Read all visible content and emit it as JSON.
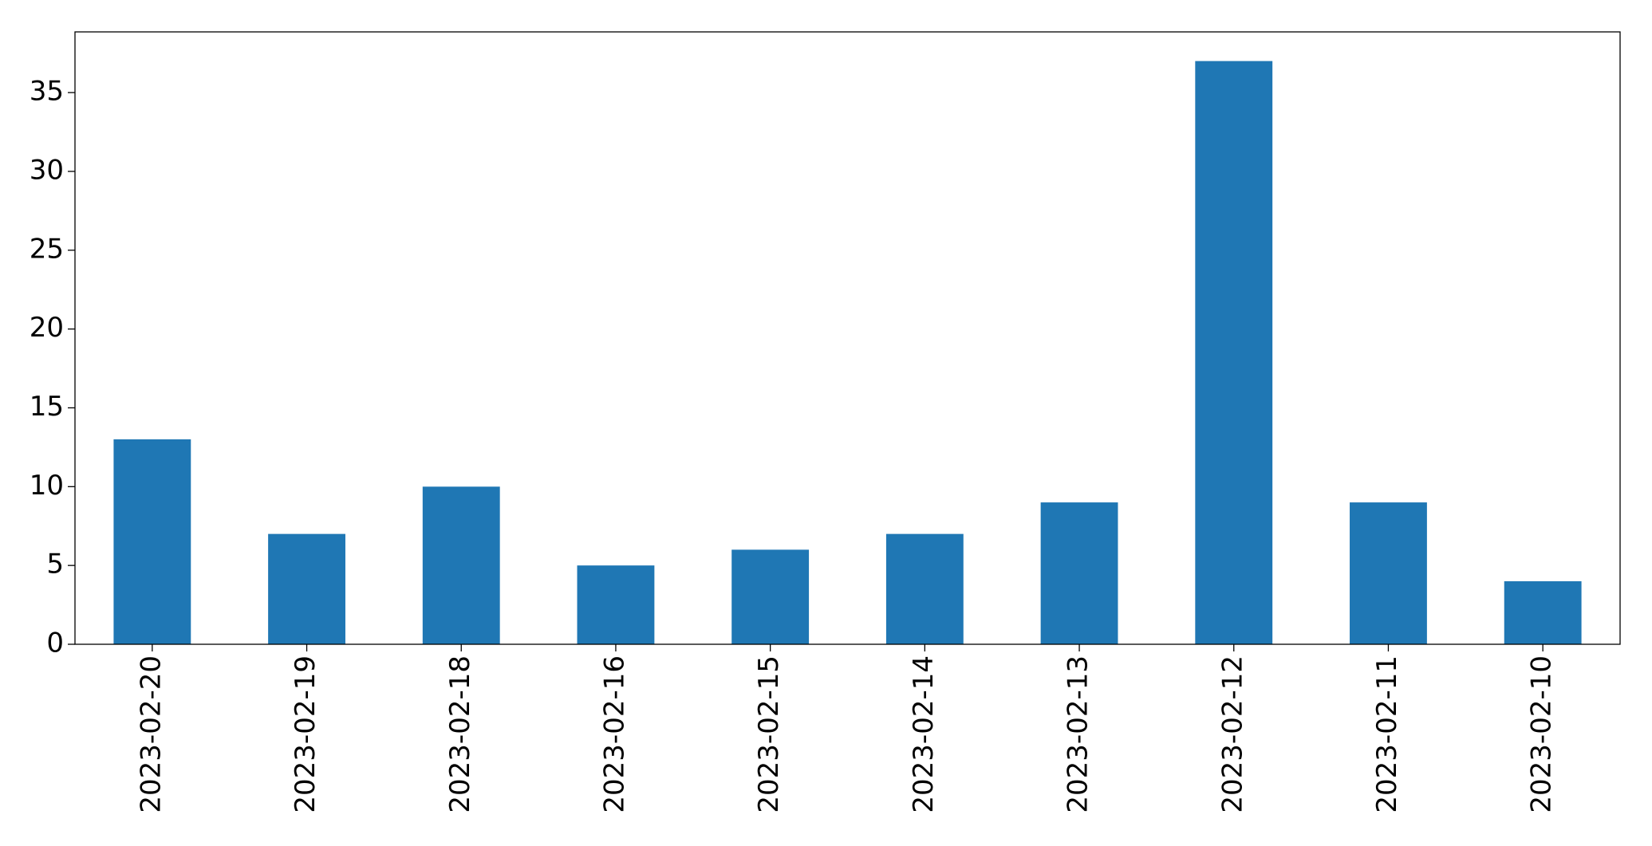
{
  "chart_data": {
    "type": "bar",
    "categories": [
      "2023-02-20",
      "2023-02-19",
      "2023-02-18",
      "2023-02-16",
      "2023-02-15",
      "2023-02-14",
      "2023-02-13",
      "2023-02-12",
      "2023-02-11",
      "2023-02-10"
    ],
    "values": [
      13,
      7,
      10,
      5,
      6,
      7,
      9,
      37,
      9,
      4
    ],
    "color": "#1f77b4",
    "ylim": [
      0,
      38.85
    ],
    "yticks": [
      0,
      5,
      10,
      15,
      20,
      25,
      30,
      35
    ],
    "grid": false
  }
}
